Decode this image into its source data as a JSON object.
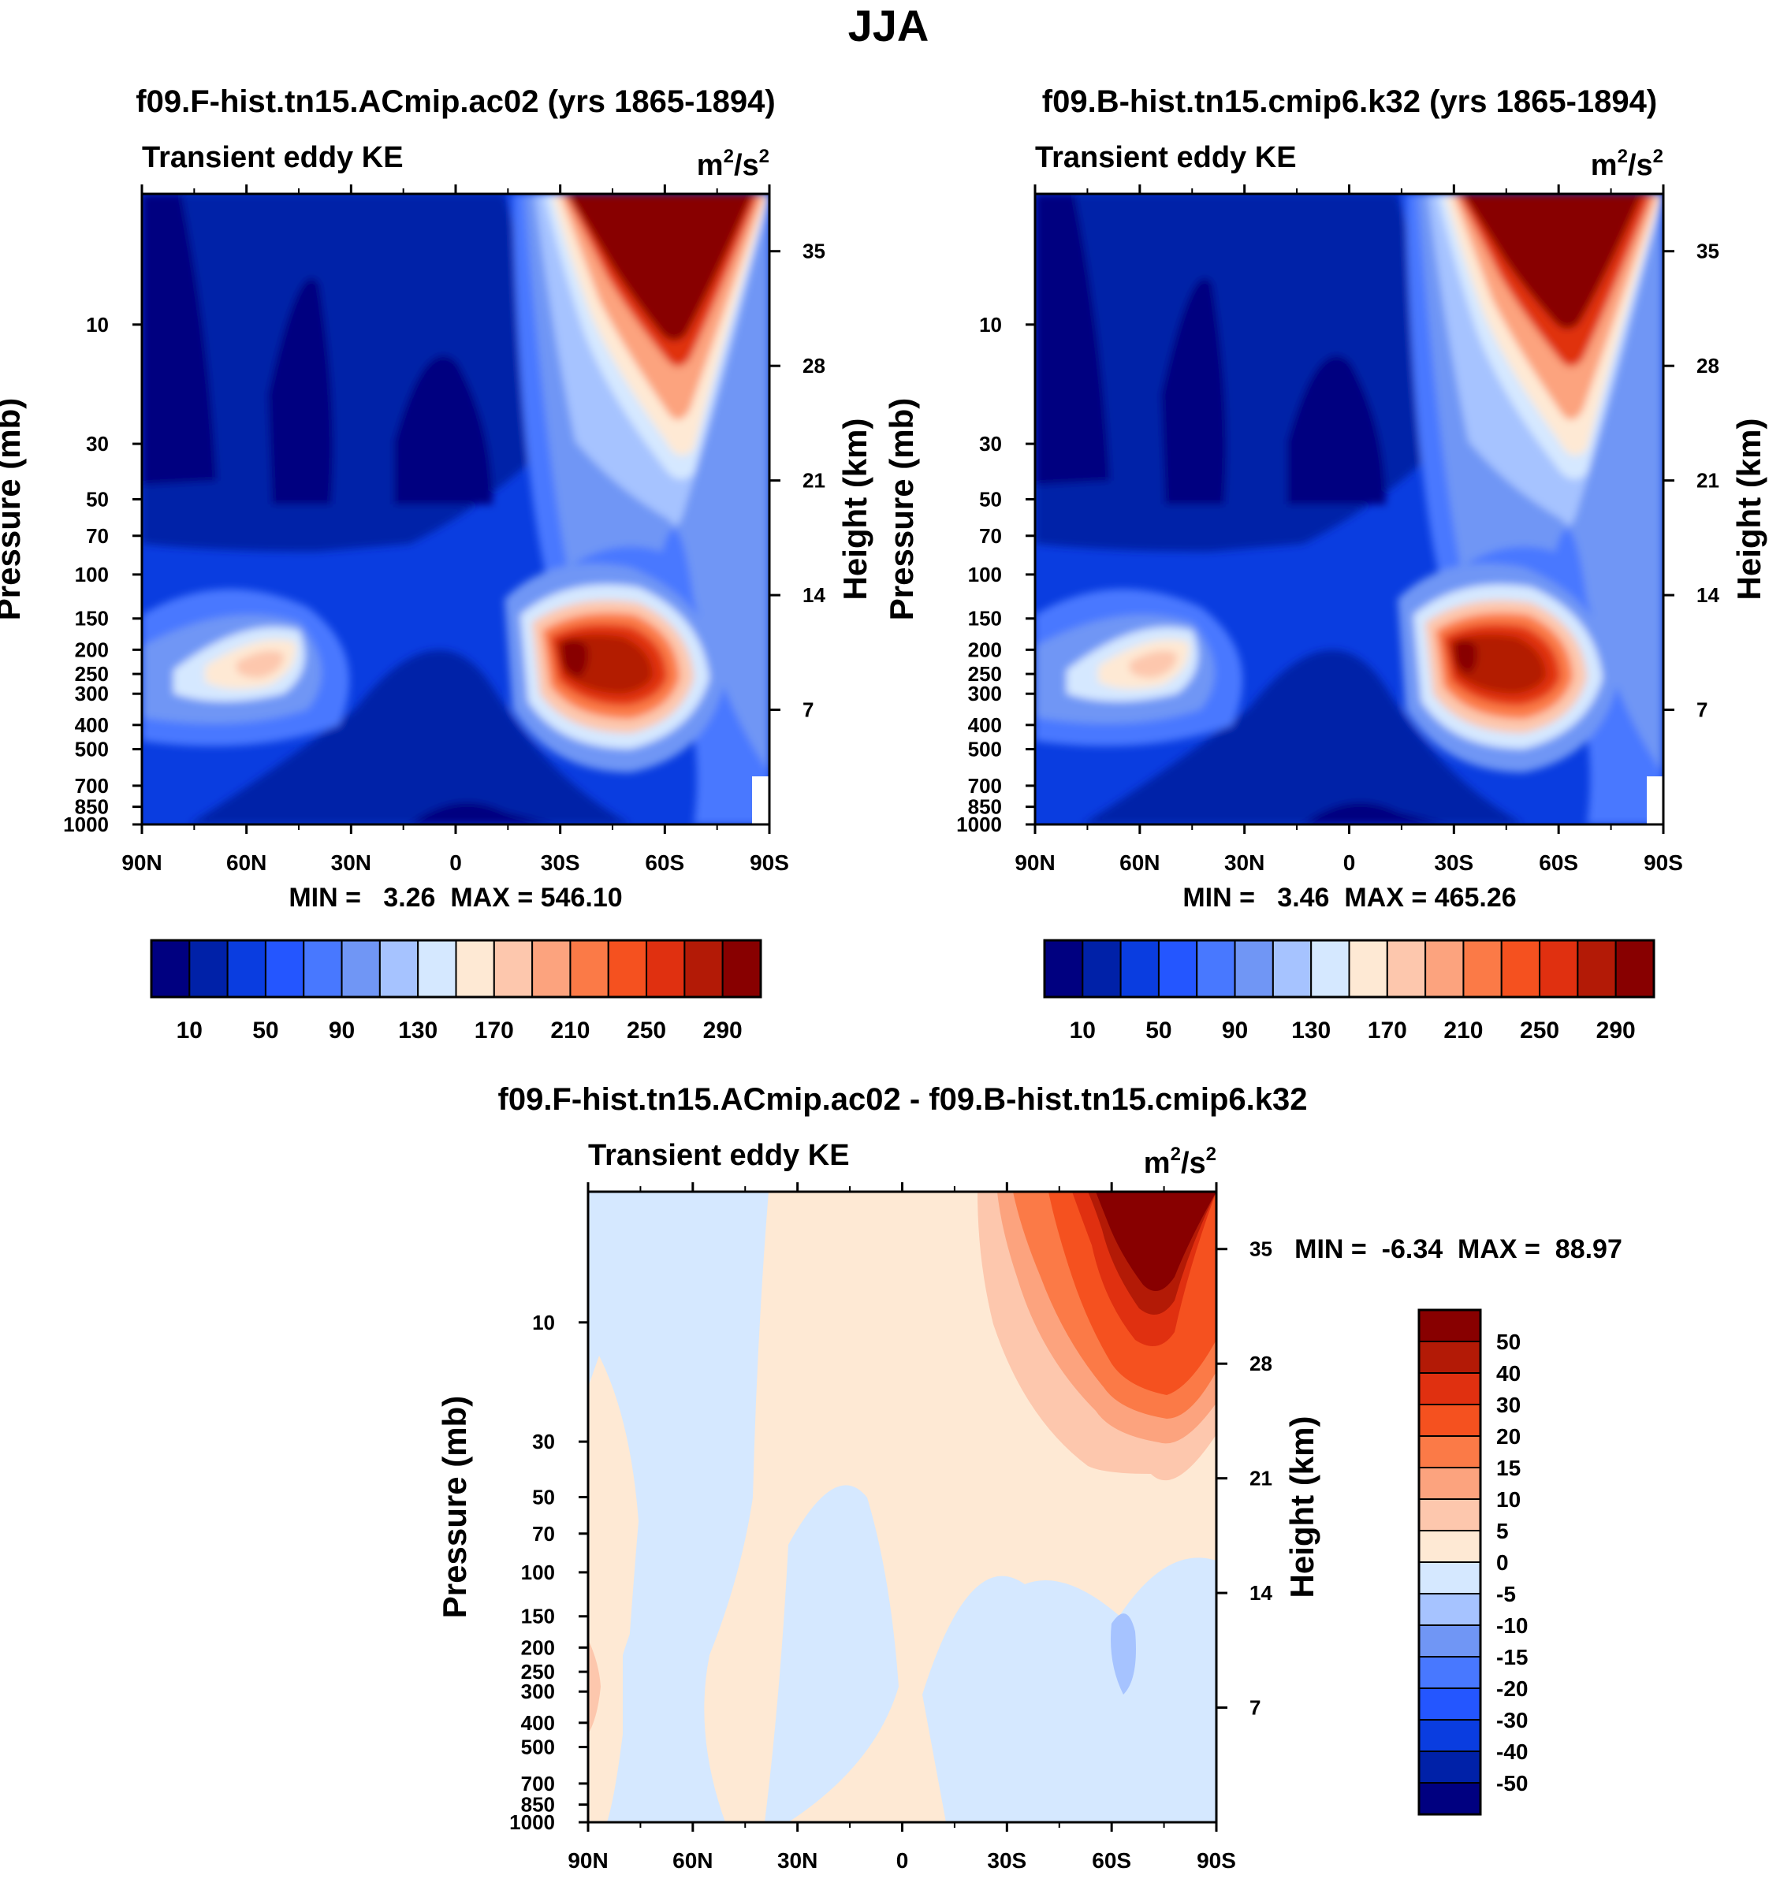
{
  "page_title": "JJA",
  "chart_data": [
    {
      "type": "heatmap",
      "id": "panel1",
      "title": "f09.F-hist.tn15.ACmip.ac02 (yrs 1865-1894)",
      "subtitle_left": "Transient eddy KE",
      "units": "m2/s2",
      "units_base": "m",
      "units_sup1": "2",
      "units_sep": "/s",
      "units_sup2": "2",
      "ylabel": "Pressure (mb)",
      "ylabel_right": "Height (km)",
      "x_ticks": [
        "90N",
        "60N",
        "30N",
        "0",
        "30S",
        "60S",
        "90S"
      ],
      "y_ticks": [
        "10",
        "30",
        "50",
        "70",
        "100",
        "150",
        "200",
        "250",
        "300",
        "400",
        "500",
        "700",
        "850",
        "1000"
      ],
      "y_ticks_right": [
        "35",
        "28",
        "21",
        "14",
        "7"
      ],
      "min_label": "MIN =   3.26  MAX = 546.10",
      "min": 3.26,
      "max": 546.1,
      "colorbar_levels": [
        10,
        30,
        50,
        70,
        90,
        110,
        130,
        150,
        170,
        190,
        210,
        230,
        250,
        270,
        290
      ],
      "colorbar_labels": [
        "10",
        "50",
        "90",
        "130",
        "170",
        "210",
        "250",
        "290"
      ]
    },
    {
      "type": "heatmap",
      "id": "panel2",
      "title": "f09.B-hist.tn15.cmip6.k32 (yrs 1865-1894)",
      "subtitle_left": "Transient eddy KE",
      "units": "m2/s2",
      "units_base": "m",
      "units_sup1": "2",
      "units_sep": "/s",
      "units_sup2": "2",
      "ylabel": "Pressure (mb)",
      "ylabel_right": "Height (km)",
      "x_ticks": [
        "90N",
        "60N",
        "30N",
        "0",
        "30S",
        "60S",
        "90S"
      ],
      "y_ticks": [
        "10",
        "30",
        "50",
        "70",
        "100",
        "150",
        "200",
        "250",
        "300",
        "400",
        "500",
        "700",
        "850",
        "1000"
      ],
      "y_ticks_right": [
        "35",
        "28",
        "21",
        "14",
        "7"
      ],
      "min_label": "MIN =   3.46  MAX = 465.26",
      "min": 3.46,
      "max": 465.26,
      "colorbar_levels": [
        10,
        30,
        50,
        70,
        90,
        110,
        130,
        150,
        170,
        190,
        210,
        230,
        250,
        270,
        290
      ],
      "colorbar_labels": [
        "10",
        "50",
        "90",
        "130",
        "170",
        "210",
        "250",
        "290"
      ]
    },
    {
      "type": "heatmap",
      "id": "panel3",
      "title": "f09.F-hist.tn15.ACmip.ac02 - f09.B-hist.tn15.cmip6.k32",
      "subtitle_left": "Transient eddy KE",
      "units": "m2/s2",
      "units_base": "m",
      "units_sup1": "2",
      "units_sep": "/s",
      "units_sup2": "2",
      "ylabel": "Pressure (mb)",
      "ylabel_right": "Height (km)",
      "x_ticks": [
        "90N",
        "60N",
        "30N",
        "0",
        "30S",
        "60S",
        "90S"
      ],
      "y_ticks": [
        "10",
        "30",
        "50",
        "70",
        "100",
        "150",
        "200",
        "250",
        "300",
        "400",
        "500",
        "700",
        "850",
        "1000"
      ],
      "y_ticks_right": [
        "35",
        "28",
        "21",
        "14",
        "7"
      ],
      "min_label": "MIN =  -6.34  MAX =  88.97",
      "min": -6.34,
      "max": 88.97,
      "colorbar_levels": [
        -50,
        -40,
        -30,
        -20,
        -15,
        -10,
        -5,
        0,
        5,
        10,
        15,
        20,
        30,
        40,
        50
      ],
      "colorbar_labels": [
        "50",
        "40",
        "30",
        "20",
        "15",
        "10",
        "5",
        "0",
        "-5",
        "-10",
        "-15",
        "-20",
        "-30",
        "-40",
        "-50"
      ]
    }
  ],
  "palette": [
    "#000080",
    "#0021a8",
    "#0a3de0",
    "#2456ff",
    "#4878ff",
    "#7096f5",
    "#a6c3ff",
    "#d5e8ff",
    "#fee9d4",
    "#fdc7ad",
    "#fca37e",
    "#fb7a47",
    "#f5511f",
    "#e03010",
    "#b31a06",
    "#880000"
  ],
  "palette_diff": [
    "#880000",
    "#b31a06",
    "#e03010",
    "#f5511f",
    "#fb7a47",
    "#fca37e",
    "#fdc7ad",
    "#fee9d4",
    "#d5e8ff",
    "#a6c3ff",
    "#7096f5",
    "#4878ff",
    "#2456ff",
    "#0a3de0",
    "#0021a8",
    "#000080"
  ]
}
